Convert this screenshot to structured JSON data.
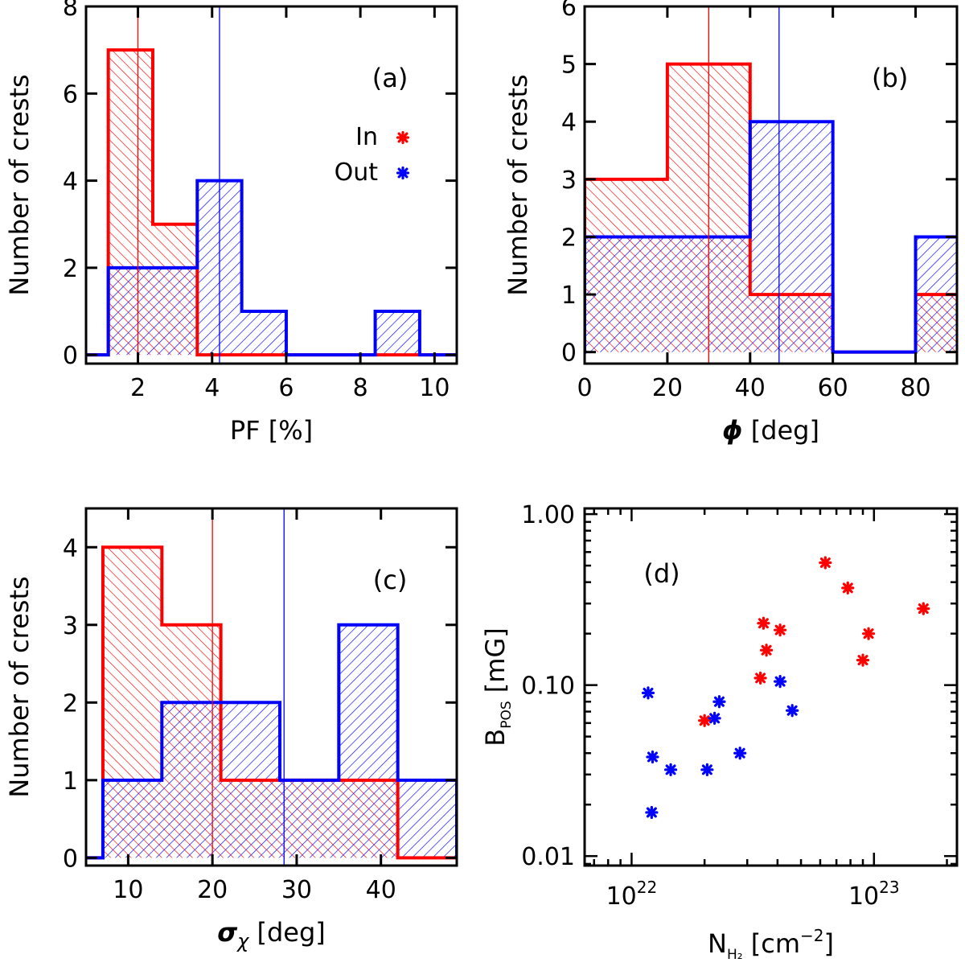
{
  "colors": {
    "in": "#ff0000",
    "out": "#0000ff"
  },
  "chart_data": [
    {
      "type": "histogram",
      "panel_label": "(a)",
      "xlabel": "PF [%]",
      "ylabel": "Number of crests",
      "xlim": [
        0.6,
        10.6
      ],
      "ylim": [
        -0.2,
        8.0
      ],
      "xticks": [
        2,
        4,
        6,
        8,
        10
      ],
      "yticks": [
        0,
        2,
        4,
        6,
        8
      ],
      "series": [
        {
          "name": "In",
          "bin_edges": [
            1.2,
            2.4,
            3.6,
            4.8,
            6.0,
            7.2,
            8.4,
            9.6
          ],
          "counts": [
            7,
            3,
            0,
            0,
            0,
            0,
            0
          ],
          "median": 2.0
        },
        {
          "name": "Out",
          "bin_edges": [
            1.2,
            3.6,
            4.8,
            6.0,
            7.2,
            8.4,
            9.6
          ],
          "counts": [
            2,
            4,
            1,
            0,
            0,
            1
          ],
          "median": 4.2
        }
      ],
      "legend": [
        {
          "label": "In",
          "marker": "*"
        },
        {
          "label": "Out",
          "marker": "*"
        }
      ]
    },
    {
      "type": "histogram",
      "panel_label": "(b)",
      "xlabel": "ϕ [deg]",
      "ylabel": "Number of crests",
      "xlim": [
        0,
        90
      ],
      "ylim": [
        -0.2,
        6.0
      ],
      "xticks": [
        0,
        20,
        40,
        60,
        80
      ],
      "yticks": [
        0,
        1,
        2,
        3,
        4,
        5,
        6
      ],
      "series": [
        {
          "name": "In",
          "bin_edges": [
            0,
            20,
            40,
            60,
            80,
            100
          ],
          "counts": [
            3,
            5,
            1,
            0,
            1
          ],
          "median": 30
        },
        {
          "name": "Out",
          "bin_edges": [
            0,
            20,
            40,
            60,
            80,
            100
          ],
          "counts": [
            2,
            2,
            4,
            0,
            2
          ],
          "median": 47
        }
      ]
    },
    {
      "type": "histogram",
      "panel_label": "(c)",
      "xlabel": "σχ [deg]",
      "ylabel": "Number of crests",
      "xlim": [
        5,
        49
      ],
      "ylim": [
        -0.1,
        4.5
      ],
      "xticks": [
        10,
        20,
        30,
        40
      ],
      "yticks": [
        0,
        1,
        2,
        3,
        4
      ],
      "series": [
        {
          "name": "In",
          "bin_edges": [
            7,
            14,
            21,
            28,
            35,
            42
          ],
          "counts": [
            4,
            3,
            1,
            1,
            1
          ],
          "median": 20
        },
        {
          "name": "Out",
          "bin_edges": [
            7,
            14,
            21,
            28,
            35,
            42,
            49
          ],
          "counts": [
            1,
            2,
            2,
            1,
            3,
            1
          ],
          "median": 28.5
        }
      ]
    },
    {
      "type": "scatter",
      "panel_label": "(d)",
      "xlabel": "N",
      "xlabel_sub": "H₂",
      "xlabel_rest": " [cm",
      "xlabel_sup": "−2",
      "xlabel_end": "]",
      "ylabel": "B",
      "ylabel_sub": "POS",
      "ylabel_rest": " [mG]",
      "xscale": "log",
      "yscale": "log",
      "xlim": [
        6.4e+21,
        2.2e+23
      ],
      "ylim": [
        0.0088,
        1.08
      ],
      "xticks": [
        {
          "value": 1e+22,
          "base": "10",
          "exp": "22"
        },
        {
          "value": 1e+23,
          "base": "10",
          "exp": "23"
        }
      ],
      "yticks": [
        {
          "value": 0.01,
          "label": "0.01"
        },
        {
          "value": 0.1,
          "label": "0.10"
        },
        {
          "value": 1.0,
          "label": "1.00"
        }
      ],
      "series": [
        {
          "name": "In",
          "points": [
            {
              "x": 2e+22,
              "y": 0.062
            },
            {
              "x": 3.4e+22,
              "y": 0.11
            },
            {
              "x": 3.5e+22,
              "y": 0.23
            },
            {
              "x": 3.6e+22,
              "y": 0.16
            },
            {
              "x": 4.1e+22,
              "y": 0.21
            },
            {
              "x": 6.3e+22,
              "y": 0.52
            },
            {
              "x": 7.8e+22,
              "y": 0.37
            },
            {
              "x": 9e+22,
              "y": 0.14
            },
            {
              "x": 9.5e+22,
              "y": 0.2
            },
            {
              "x": 1.6e+23,
              "y": 0.28
            }
          ]
        },
        {
          "name": "Out",
          "points": [
            {
              "x": 1.17e+22,
              "y": 0.09
            },
            {
              "x": 1.22e+22,
              "y": 0.038
            },
            {
              "x": 1.21e+22,
              "y": 0.018
            },
            {
              "x": 1.45e+22,
              "y": 0.032
            },
            {
              "x": 2.05e+22,
              "y": 0.032
            },
            {
              "x": 2.2e+22,
              "y": 0.064
            },
            {
              "x": 2.3e+22,
              "y": 0.08
            },
            {
              "x": 2.8e+22,
              "y": 0.04
            },
            {
              "x": 4.1e+22,
              "y": 0.105
            },
            {
              "x": 4.6e+22,
              "y": 0.071
            }
          ]
        }
      ]
    }
  ]
}
